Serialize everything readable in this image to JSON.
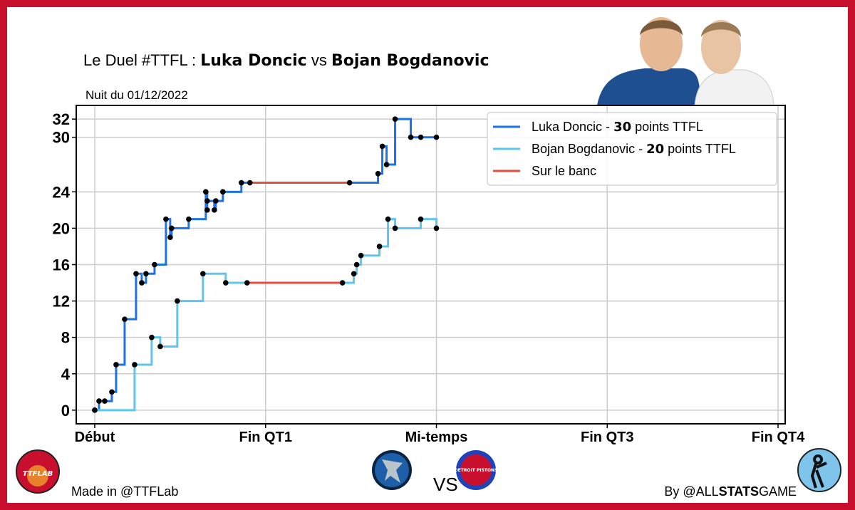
{
  "header": {
    "title_prefix": "Le Duel #TTFL : ",
    "player1": "Luka Doncic",
    "vs": " vs ",
    "player2": "Bojan Bogdanovic",
    "subtitle": "Nuit du 01/12/2022"
  },
  "footer": {
    "made_in": "Made in @TTFLab",
    "by_prefix": "By @ALL",
    "by_bold": "STATS",
    "by_suffix": "GAME",
    "vs": "VS",
    "logo_left": "TTFLAB",
    "team_right": "DETROIT PISTONS"
  },
  "colors": {
    "doncic": "#1a73e8",
    "bogdanovic": "#5bc6f0",
    "bench": "#e74c3c",
    "frame": "#c8102e"
  },
  "chart_data": {
    "type": "line",
    "step": "post",
    "x_ticks": [
      {
        "value": 0,
        "label": "Début"
      },
      {
        "value": 12,
        "label": "Fin QT1"
      },
      {
        "value": 24,
        "label": "Mi-temps"
      },
      {
        "value": 36,
        "label": "Fin QT3"
      },
      {
        "value": 48,
        "label": "Fin QT4"
      }
    ],
    "y_ticks": [
      0,
      4,
      8,
      12,
      16,
      20,
      24,
      30,
      32
    ],
    "xlim": [
      -1.3,
      48.5
    ],
    "ylim": [
      -1.5,
      33.5
    ],
    "grid": true,
    "legend": "top-right",
    "series": [
      {
        "name_prefix": "Luka Doncic - ",
        "name_points": "30",
        "name_suffix": " points TTFL",
        "color_key": "doncic",
        "x": [
          0,
          0.3,
          0.7,
          1.2,
          1.5,
          2.1,
          2.9,
          3.3,
          3.6,
          4.2,
          5.0,
          5.3,
          5.4,
          6.6,
          7.8,
          7.9,
          7.9,
          8.4,
          8.5,
          9.0,
          10.3,
          10.9
        ],
        "y": [
          0,
          1,
          1,
          2,
          5,
          10,
          15,
          14,
          15,
          16,
          21,
          19,
          20,
          21,
          24,
          22,
          23,
          22,
          23,
          24,
          25,
          25
        ],
        "bench": [
          [
            10.9,
            17.9
          ]
        ],
        "x2": [
          17.9,
          19.9,
          20.2,
          20.5,
          21.1,
          22.2,
          22.9,
          24.0
        ],
        "y2": [
          25,
          26,
          29,
          27,
          32,
          30,
          30,
          30
        ]
      },
      {
        "name_prefix": "Bojan Bogdanovic - ",
        "name_points": "20",
        "name_suffix": " points TTFL",
        "color_key": "bogdanovic",
        "x": [
          0,
          2.8,
          4.0,
          4.6,
          5.8,
          7.6,
          9.2,
          10.7
        ],
        "y": [
          0,
          5,
          8,
          7,
          12,
          15,
          14,
          14
        ],
        "bench": [
          [
            10.7,
            17.4
          ]
        ],
        "x2": [
          17.4,
          18.2,
          18.4,
          18.7,
          20.0,
          20.6,
          21.1,
          22.9,
          24.0
        ],
        "y2": [
          14,
          15,
          16,
          17,
          18,
          21,
          20,
          21,
          20
        ]
      }
    ],
    "bench_label": "Sur le banc"
  }
}
